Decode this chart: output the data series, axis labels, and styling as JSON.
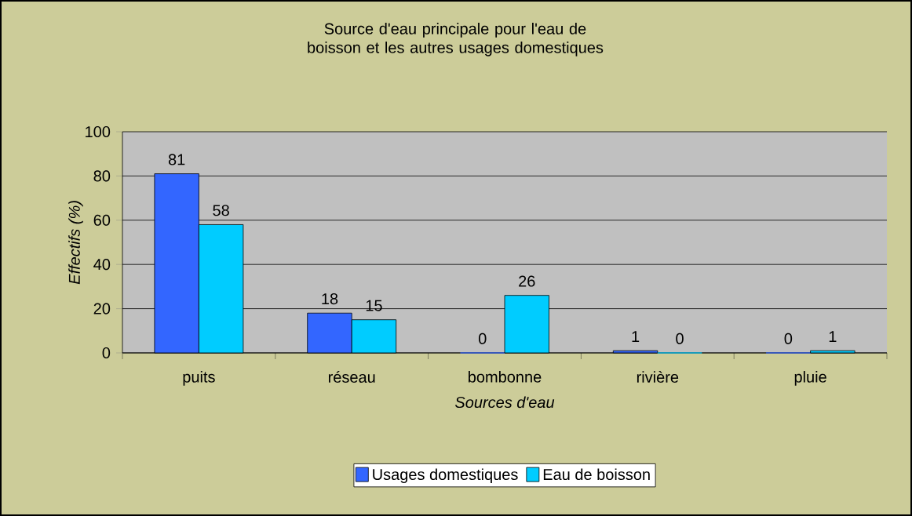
{
  "chart_data": {
    "type": "bar",
    "title": "Source d'eau principale pour l'eau de boisson et les autres usages domestiques",
    "xlabel": "Sources d'eau",
    "ylabel": "Effectifs (%)",
    "categories": [
      "puits",
      "réseau",
      "bombonne",
      "rivière",
      "pluie"
    ],
    "series": [
      {
        "name": "Usages domestiques",
        "color": "#3366ff",
        "values": [
          81,
          18,
          0,
          1,
          0
        ]
      },
      {
        "name": "Eau de boisson",
        "color": "#00ccff",
        "values": [
          58,
          15,
          26,
          0,
          1
        ]
      }
    ],
    "ylim": [
      0,
      100
    ],
    "yticks": [
      0,
      20,
      40,
      60,
      80,
      100
    ],
    "grid": "y",
    "legend": "bottom",
    "data_labels": true
  }
}
